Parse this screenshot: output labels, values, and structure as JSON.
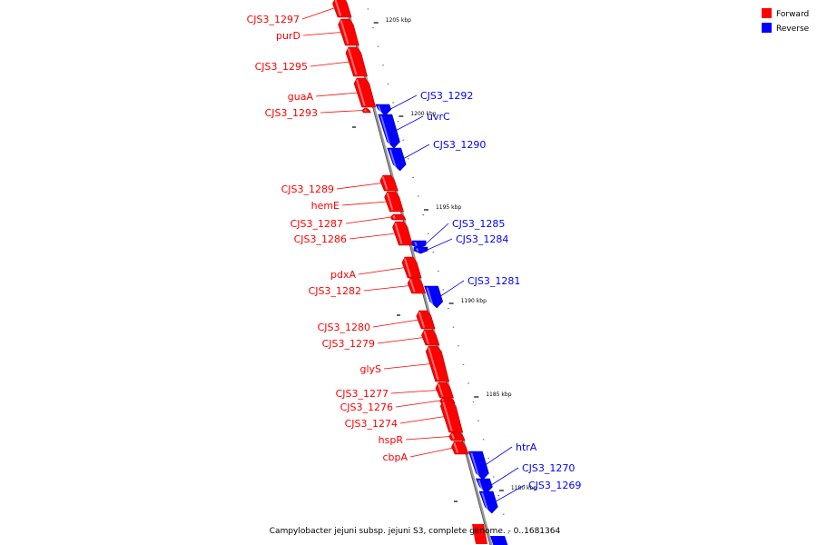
{
  "caption": "Campylobacter jejuni subsp. jejuni S3, complete genome. - 0..1681364",
  "colors": {
    "forward": "#ff0000",
    "reverse": "#0000ff",
    "backbone": "#808080"
  },
  "legend": [
    {
      "label": "Forward",
      "color": "#ff0000"
    },
    {
      "label": "Reverse",
      "color": "#0000ff"
    }
  ],
  "ticks": [
    {
      "label": "1205 kbp",
      "kbp": 1205
    },
    {
      "label": "1200 kbp",
      "kbp": 1200
    },
    {
      "label": "1195 kbp",
      "kbp": 1195
    },
    {
      "label": "1190 kbp",
      "kbp": 1190
    },
    {
      "label": "1185 kbp",
      "kbp": 1185
    },
    {
      "label": "1180 kbp",
      "kbp": 1180
    }
  ],
  "genes": [
    {
      "name": "CJS3_1297",
      "strand": "forward"
    },
    {
      "name": "purD",
      "strand": "forward"
    },
    {
      "name": "CJS3_1295",
      "strand": "forward"
    },
    {
      "name": "guaA",
      "strand": "forward"
    },
    {
      "name": "CJS3_1293",
      "strand": "forward"
    },
    {
      "name": "CJS3_1292",
      "strand": "reverse"
    },
    {
      "name": "uvrC",
      "strand": "reverse"
    },
    {
      "name": "CJS3_1290",
      "strand": "reverse"
    },
    {
      "name": "CJS3_1289",
      "strand": "forward"
    },
    {
      "name": "hemE",
      "strand": "forward"
    },
    {
      "name": "CJS3_1287",
      "strand": "forward"
    },
    {
      "name": "CJS3_1286",
      "strand": "forward"
    },
    {
      "name": "CJS3_1285",
      "strand": "reverse"
    },
    {
      "name": "CJS3_1284",
      "strand": "reverse"
    },
    {
      "name": "pdxA",
      "strand": "forward"
    },
    {
      "name": "CJS3_1282",
      "strand": "forward"
    },
    {
      "name": "CJS3_1281",
      "strand": "reverse"
    },
    {
      "name": "CJS3_1280",
      "strand": "forward"
    },
    {
      "name": "CJS3_1279",
      "strand": "forward"
    },
    {
      "name": "glyS",
      "strand": "forward"
    },
    {
      "name": "CJS3_1277",
      "strand": "forward"
    },
    {
      "name": "CJS3_1276",
      "strand": "forward"
    },
    {
      "name": "CJS3_1274",
      "strand": "forward"
    },
    {
      "name": "hspR",
      "strand": "forward"
    },
    {
      "name": "cbpA",
      "strand": "forward"
    },
    {
      "name": "htrA",
      "strand": "reverse"
    },
    {
      "name": "CJS3_1270",
      "strand": "reverse"
    },
    {
      "name": "CJS3_1269",
      "strand": "reverse"
    }
  ]
}
